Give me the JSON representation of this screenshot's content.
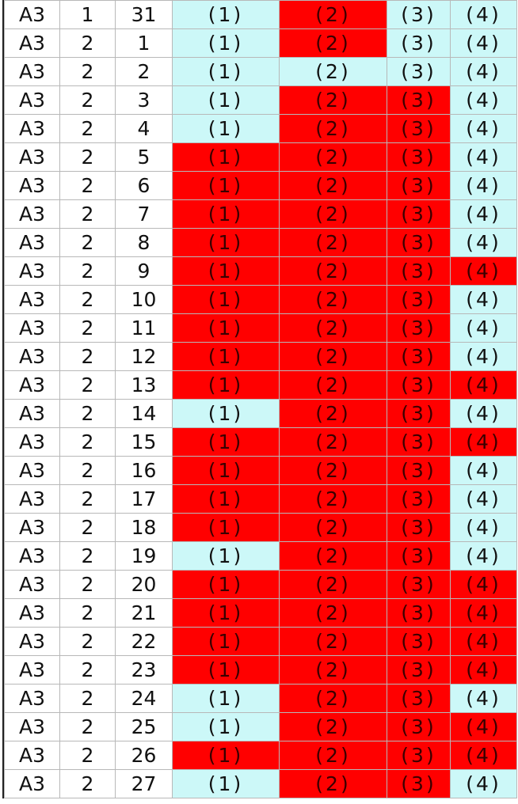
{
  "colors": {
    "highlight": "#ff0000",
    "normal": "#ccf8f8",
    "key": "#ffffff"
  },
  "rows": [
    {
      "a": "A3",
      "b": "1",
      "c": "31",
      "marks": [
        "(1)",
        "(2)",
        "(3)",
        "(4)"
      ],
      "hi": [
        0,
        1,
        0,
        0
      ]
    },
    {
      "a": "A3",
      "b": "2",
      "c": "1",
      "marks": [
        "(1)",
        "(2)",
        "(3)",
        "(4)"
      ],
      "hi": [
        0,
        1,
        0,
        0
      ]
    },
    {
      "a": "A3",
      "b": "2",
      "c": "2",
      "marks": [
        "(1)",
        "(2)",
        "(3)",
        "(4)"
      ],
      "hi": [
        0,
        0,
        0,
        0
      ]
    },
    {
      "a": "A3",
      "b": "2",
      "c": "3",
      "marks": [
        "(1)",
        "(2)",
        "(3)",
        "(4)"
      ],
      "hi": [
        0,
        1,
        1,
        0
      ]
    },
    {
      "a": "A3",
      "b": "2",
      "c": "4",
      "marks": [
        "(1)",
        "(2)",
        "(3)",
        "(4)"
      ],
      "hi": [
        0,
        1,
        1,
        0
      ]
    },
    {
      "a": "A3",
      "b": "2",
      "c": "5",
      "marks": [
        "(1)",
        "(2)",
        "(3)",
        "(4)"
      ],
      "hi": [
        1,
        1,
        1,
        0
      ]
    },
    {
      "a": "A3",
      "b": "2",
      "c": "6",
      "marks": [
        "(1)",
        "(2)",
        "(3)",
        "(4)"
      ],
      "hi": [
        1,
        1,
        1,
        0
      ]
    },
    {
      "a": "A3",
      "b": "2",
      "c": "7",
      "marks": [
        "(1)",
        "(2)",
        "(3)",
        "(4)"
      ],
      "hi": [
        1,
        1,
        1,
        0
      ]
    },
    {
      "a": "A3",
      "b": "2",
      "c": "8",
      "marks": [
        "(1)",
        "(2)",
        "(3)",
        "(4)"
      ],
      "hi": [
        1,
        1,
        1,
        0
      ]
    },
    {
      "a": "A3",
      "b": "2",
      "c": "9",
      "marks": [
        "(1)",
        "(2)",
        "(3)",
        "(4)"
      ],
      "hi": [
        1,
        1,
        1,
        1
      ]
    },
    {
      "a": "A3",
      "b": "2",
      "c": "10",
      "marks": [
        "(1)",
        "(2)",
        "(3)",
        "(4)"
      ],
      "hi": [
        1,
        1,
        1,
        0
      ]
    },
    {
      "a": "A3",
      "b": "2",
      "c": "11",
      "marks": [
        "(1)",
        "(2)",
        "(3)",
        "(4)"
      ],
      "hi": [
        1,
        1,
        1,
        0
      ]
    },
    {
      "a": "A3",
      "b": "2",
      "c": "12",
      "marks": [
        "(1)",
        "(2)",
        "(3)",
        "(4)"
      ],
      "hi": [
        1,
        1,
        1,
        0
      ]
    },
    {
      "a": "A3",
      "b": "2",
      "c": "13",
      "marks": [
        "(1)",
        "(2)",
        "(3)",
        "(4)"
      ],
      "hi": [
        1,
        1,
        1,
        1
      ]
    },
    {
      "a": "A3",
      "b": "2",
      "c": "14",
      "marks": [
        "(1)",
        "(2)",
        "(3)",
        "(4)"
      ],
      "hi": [
        0,
        1,
        1,
        0
      ]
    },
    {
      "a": "A3",
      "b": "2",
      "c": "15",
      "marks": [
        "(1)",
        "(2)",
        "(3)",
        "(4)"
      ],
      "hi": [
        1,
        1,
        1,
        1
      ]
    },
    {
      "a": "A3",
      "b": "2",
      "c": "16",
      "marks": [
        "(1)",
        "(2)",
        "(3)",
        "(4)"
      ],
      "hi": [
        1,
        1,
        1,
        0
      ]
    },
    {
      "a": "A3",
      "b": "2",
      "c": "17",
      "marks": [
        "(1)",
        "(2)",
        "(3)",
        "(4)"
      ],
      "hi": [
        1,
        1,
        1,
        0
      ]
    },
    {
      "a": "A3",
      "b": "2",
      "c": "18",
      "marks": [
        "(1)",
        "(2)",
        "(3)",
        "(4)"
      ],
      "hi": [
        1,
        1,
        1,
        0
      ]
    },
    {
      "a": "A3",
      "b": "2",
      "c": "19",
      "marks": [
        "(1)",
        "(2)",
        "(3)",
        "(4)"
      ],
      "hi": [
        0,
        1,
        1,
        0
      ]
    },
    {
      "a": "A3",
      "b": "2",
      "c": "20",
      "marks": [
        "(1)",
        "(2)",
        "(3)",
        "(4)"
      ],
      "hi": [
        1,
        1,
        1,
        1
      ]
    },
    {
      "a": "A3",
      "b": "2",
      "c": "21",
      "marks": [
        "(1)",
        "(2)",
        "(3)",
        "(4)"
      ],
      "hi": [
        1,
        1,
        1,
        1
      ]
    },
    {
      "a": "A3",
      "b": "2",
      "c": "22",
      "marks": [
        "(1)",
        "(2)",
        "(3)",
        "(4)"
      ],
      "hi": [
        1,
        1,
        1,
        1
      ]
    },
    {
      "a": "A3",
      "b": "2",
      "c": "23",
      "marks": [
        "(1)",
        "(2)",
        "(3)",
        "(4)"
      ],
      "hi": [
        1,
        1,
        1,
        1
      ]
    },
    {
      "a": "A3",
      "b": "2",
      "c": "24",
      "marks": [
        "(1)",
        "(2)",
        "(3)",
        "(4)"
      ],
      "hi": [
        0,
        1,
        1,
        0
      ]
    },
    {
      "a": "A3",
      "b": "2",
      "c": "25",
      "marks": [
        "(1)",
        "(2)",
        "(3)",
        "(4)"
      ],
      "hi": [
        0,
        1,
        1,
        1
      ]
    },
    {
      "a": "A3",
      "b": "2",
      "c": "26",
      "marks": [
        "(1)",
        "(2)",
        "(3)",
        "(4)"
      ],
      "hi": [
        1,
        1,
        1,
        1
      ]
    },
    {
      "a": "A3",
      "b": "2",
      "c": "27",
      "marks": [
        "(1)",
        "(2)",
        "(3)",
        "(4)"
      ],
      "hi": [
        0,
        1,
        1,
        0
      ]
    }
  ]
}
